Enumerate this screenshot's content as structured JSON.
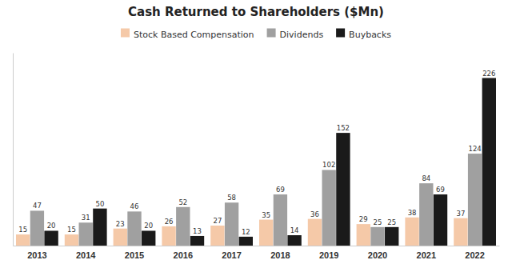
{
  "chart_data": {
    "type": "bar",
    "title": "Cash Returned to Shareholders ($Mn)",
    "categories": [
      "2013",
      "2014",
      "2015",
      "2016",
      "2017",
      "2018",
      "2019",
      "2020",
      "2021",
      "2022"
    ],
    "series": [
      {
        "name": "Stock Based Compensation",
        "color": "#f5c9a8",
        "values": [
          15,
          15,
          23,
          26,
          27,
          35,
          36,
          29,
          38,
          37
        ]
      },
      {
        "name": "Dividends",
        "color": "#a0a0a0",
        "values": [
          47,
          31,
          46,
          52,
          58,
          69,
          102,
          25,
          84,
          124
        ]
      },
      {
        "name": "Buybacks",
        "color": "#1a1a1a",
        "values": [
          20,
          50,
          20,
          13,
          12,
          14,
          152,
          25,
          69,
          226
        ]
      }
    ],
    "ylim": [
      0,
      260
    ],
    "grid": false,
    "legend": "top",
    "data_labels": true,
    "tick_labels": "x"
  }
}
